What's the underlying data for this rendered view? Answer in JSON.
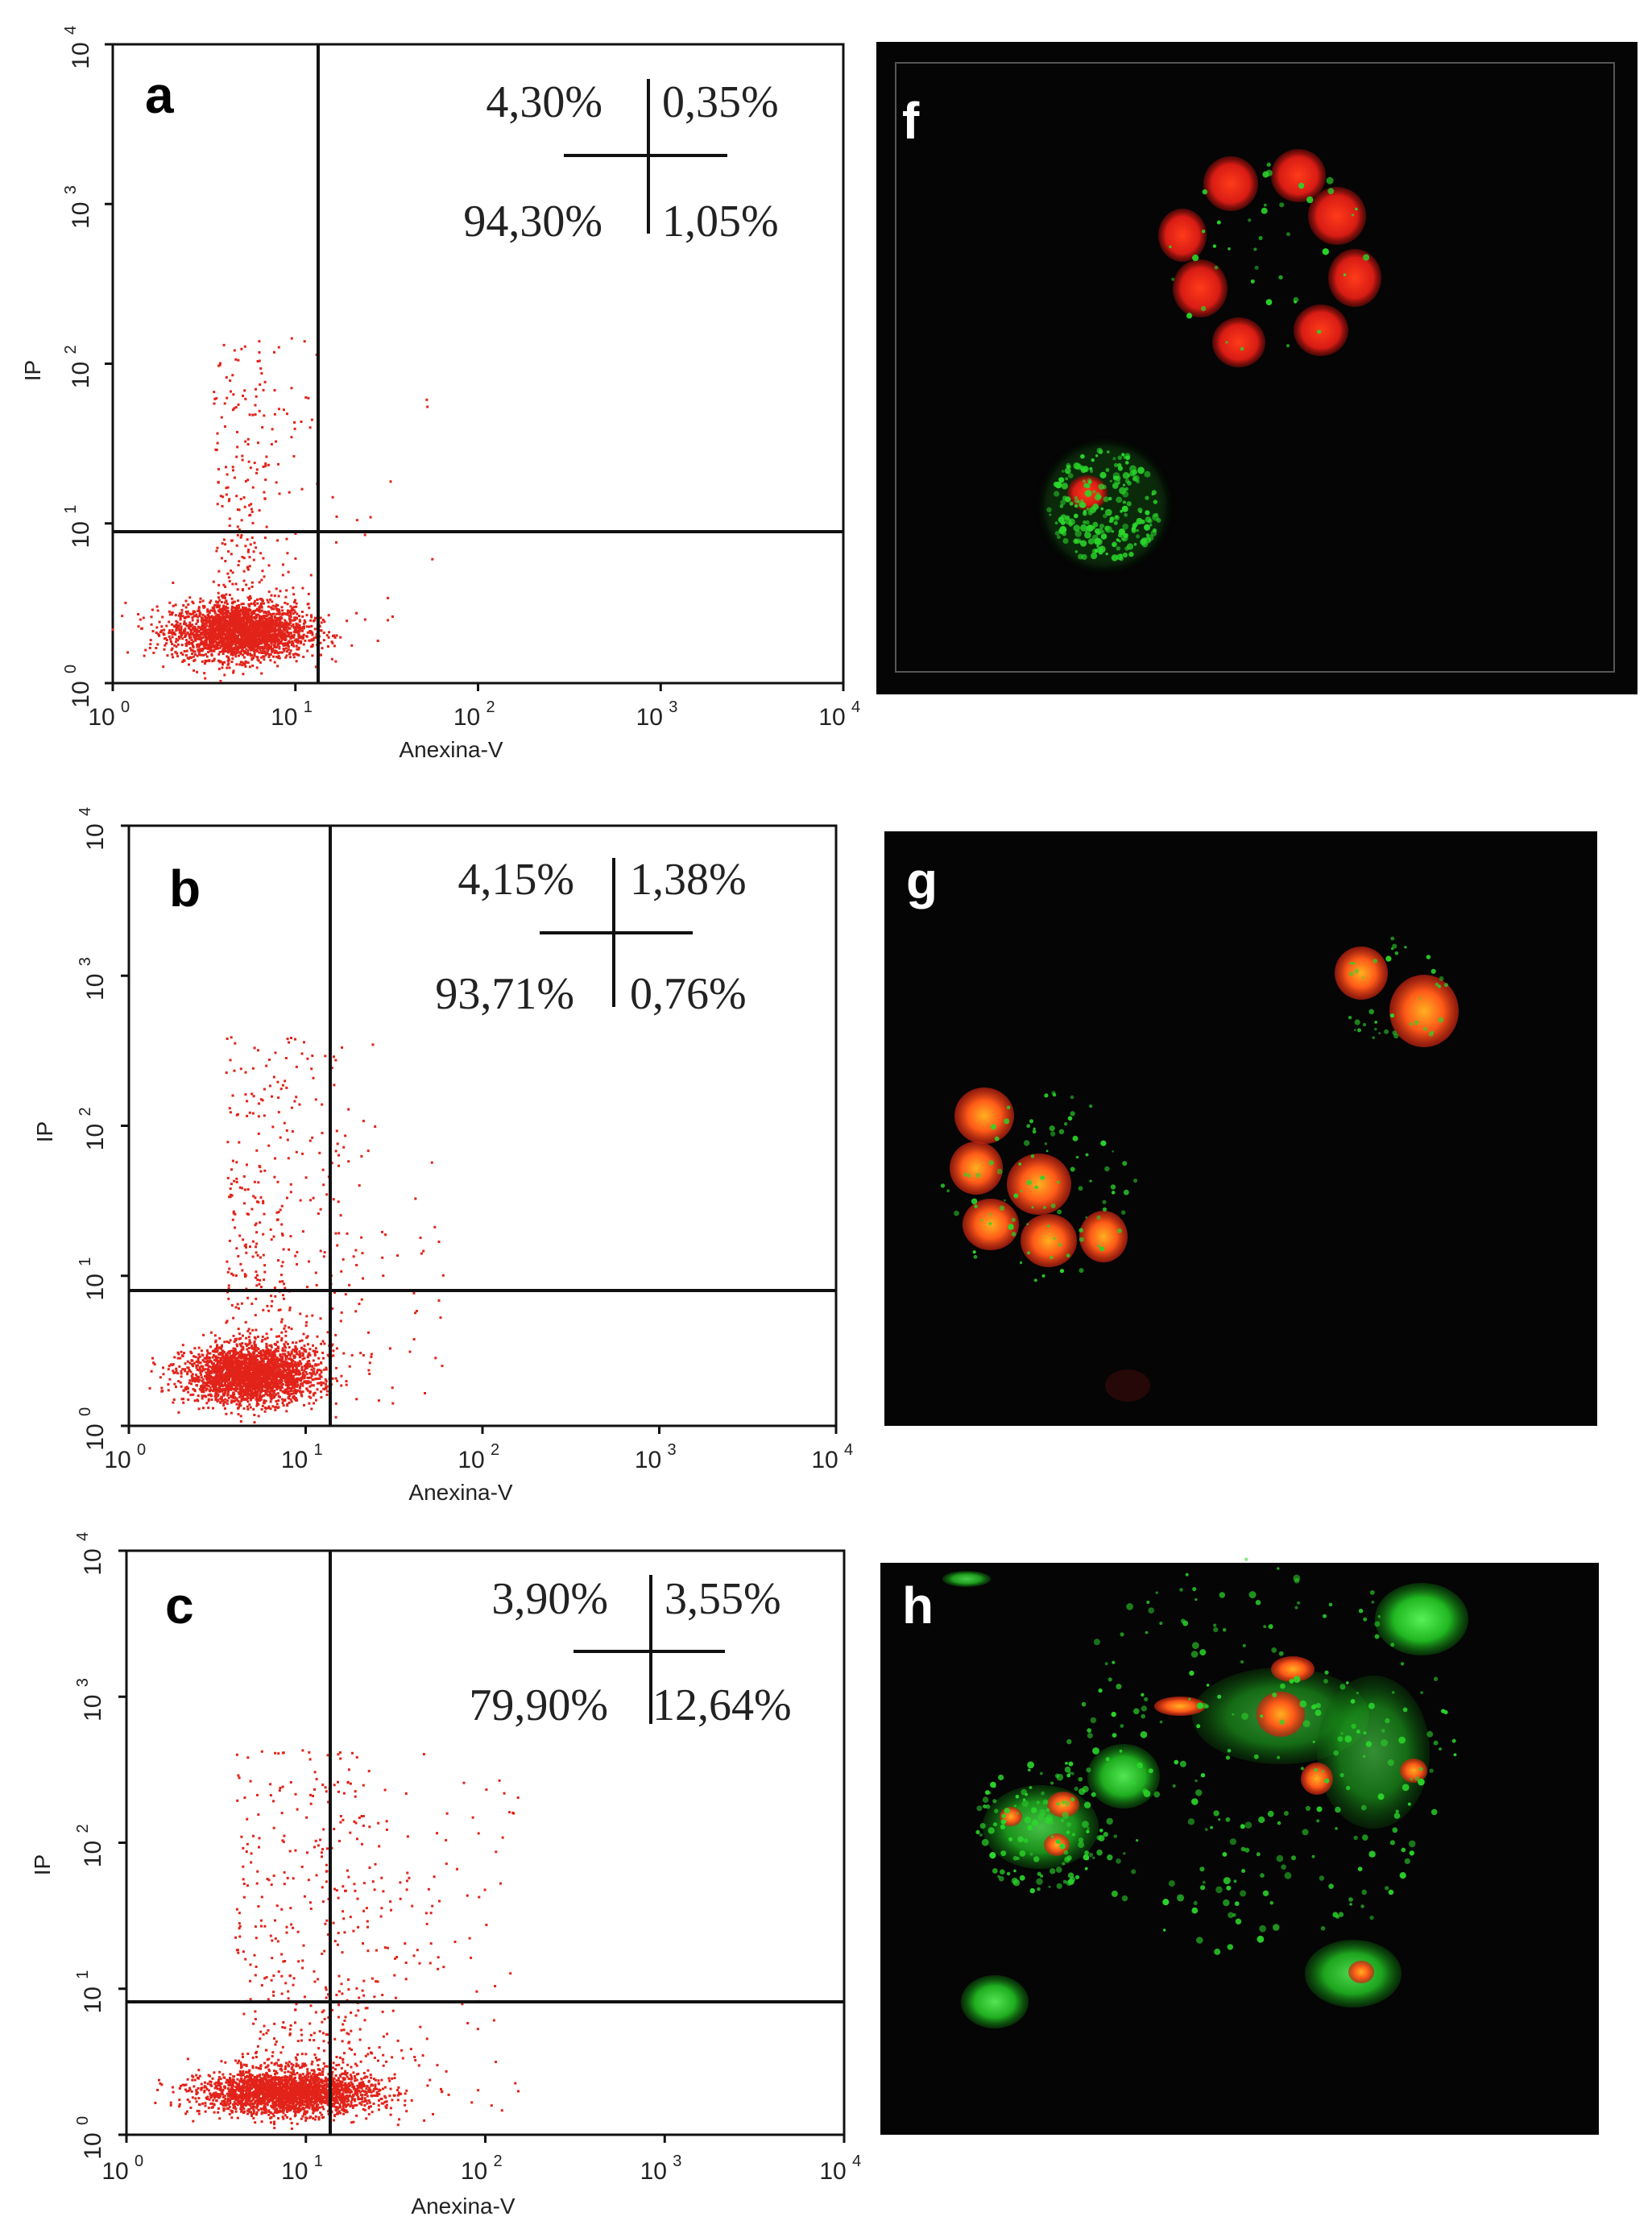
{
  "colors": {
    "dot": "#e2231a",
    "axis": "#111111",
    "micro_bg": "#050505",
    "cell_red": "#e8231a",
    "cell_orange": "#f0701a",
    "cell_green": "#2bd62b"
  },
  "axis_labels": {
    "x": "Anexina-V",
    "y": "IP"
  },
  "tick_labels": {
    "base": "10",
    "exponents": [
      "0",
      "1",
      "2",
      "3",
      "4"
    ]
  },
  "chart_data": [
    {
      "type": "scatter",
      "panel": "a",
      "xlabel": "Anexina-V",
      "ylabel": "IP",
      "xscale": "log",
      "yscale": "log",
      "xlim": [
        1,
        10000
      ],
      "ylim": [
        1,
        10000
      ],
      "gate": {
        "x": 13,
        "y": 8
      },
      "quadrants": {
        "upper_left": "4,30%",
        "upper_right": "0,35%",
        "lower_left": "94,30%",
        "lower_right": "1,05%"
      },
      "population": {
        "main_x_range": [
          2,
          12
        ],
        "main_y_range": [
          1.3,
          3.5
        ],
        "upper_count": 260,
        "upper_x_range": [
          3.5,
          14
        ],
        "upper_y_range": [
          3,
          150
        ],
        "spread": "low"
      }
    },
    {
      "type": "scatter",
      "panel": "b",
      "xlabel": "Anexina-V",
      "ylabel": "IP",
      "xscale": "log",
      "yscale": "log",
      "xlim": [
        1,
        10000
      ],
      "ylim": [
        1,
        10000
      ],
      "gate": {
        "x": 14,
        "y": 8
      },
      "quadrants": {
        "upper_left": "4,15%",
        "upper_right": "1,38%",
        "lower_left": "93,71%",
        "lower_right": "0,76%"
      },
      "population": {
        "main_x_range": [
          2,
          12
        ],
        "main_y_range": [
          1.3,
          3.8
        ],
        "upper_count": 380,
        "upper_x_range": [
          3.5,
          30
        ],
        "upper_y_range": [
          3,
          400
        ],
        "spread": "medium"
      }
    },
    {
      "type": "scatter",
      "panel": "c",
      "xlabel": "Anexina-V",
      "ylabel": "IP",
      "xscale": "log",
      "yscale": "log",
      "xlim": [
        1,
        10000
      ],
      "ylim": [
        1,
        10000
      ],
      "gate": {
        "x": 14,
        "y": 8
      },
      "quadrants": {
        "upper_left": "3,90%",
        "upper_right": "3,55%",
        "lower_left": "79,90%",
        "lower_right": "12,64%"
      },
      "population": {
        "main_x_range": [
          2.5,
          25
        ],
        "main_y_range": [
          1.3,
          3
        ],
        "upper_count": 420,
        "upper_x_range": [
          4,
          60
        ],
        "upper_y_range": [
          3,
          450
        ],
        "spread": "high"
      }
    }
  ],
  "micrographs": [
    {
      "panel": "f",
      "description_label": "f"
    },
    {
      "panel": "g",
      "description_label": "g"
    },
    {
      "panel": "h",
      "description_label": "h"
    }
  ]
}
